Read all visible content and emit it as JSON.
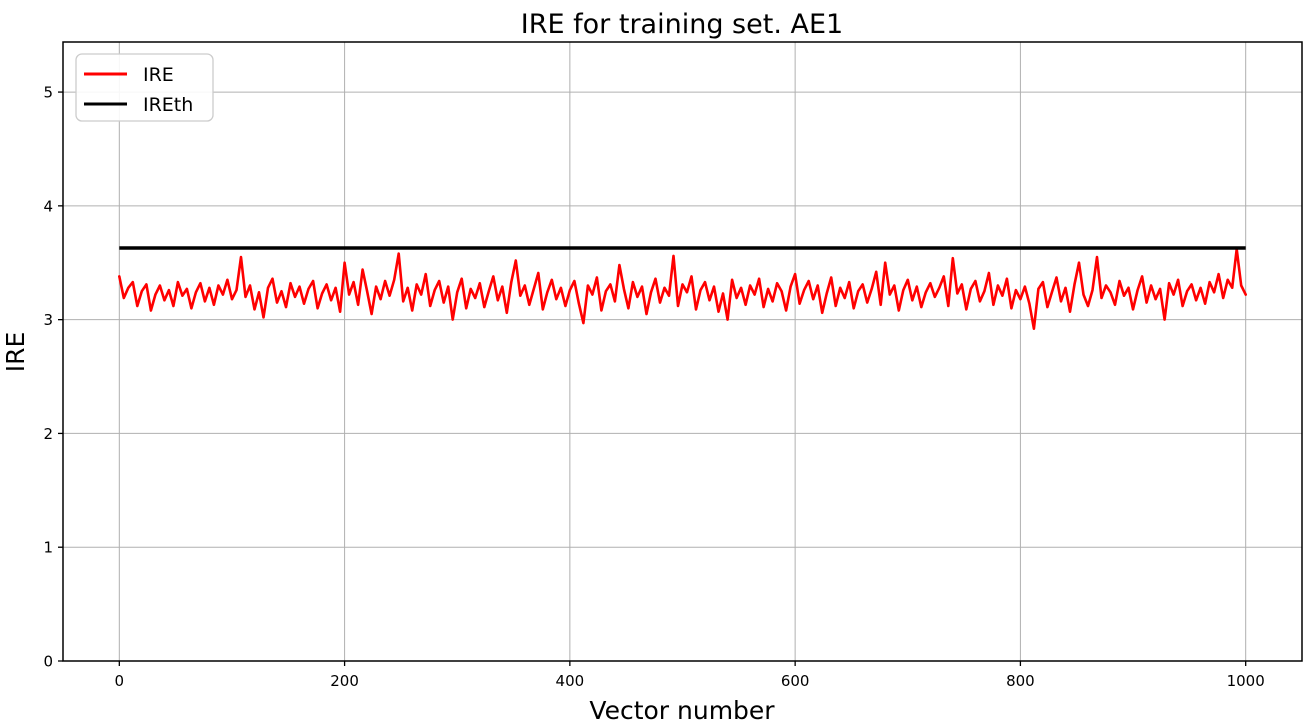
{
  "chart_data": {
    "type": "line",
    "title": "IRE for training set. AE1",
    "xlabel": "Vector number",
    "ylabel": "IRE",
    "xlim": [
      -50,
      1050
    ],
    "ylim": [
      0,
      5.44
    ],
    "x_ticks": [
      0,
      200,
      400,
      600,
      800,
      1000
    ],
    "y_ticks": [
      0,
      1,
      2,
      3,
      4,
      5
    ],
    "grid": true,
    "grid_color": "#b0b0b0",
    "axis_color": "#000000",
    "background_color": "#ffffff",
    "legend_position": "upper left",
    "x_start": 0,
    "x_step": 4,
    "series": [
      {
        "name": "IRE",
        "color": "#ff0000",
        "line_width": 2.6,
        "values": [
          3.38,
          3.19,
          3.28,
          3.33,
          3.12,
          3.25,
          3.31,
          3.08,
          3.22,
          3.3,
          3.17,
          3.26,
          3.12,
          3.33,
          3.21,
          3.27,
          3.1,
          3.24,
          3.32,
          3.16,
          3.28,
          3.13,
          3.3,
          3.22,
          3.35,
          3.18,
          3.26,
          3.55,
          3.2,
          3.3,
          3.09,
          3.24,
          3.02,
          3.28,
          3.36,
          3.15,
          3.25,
          3.11,
          3.32,
          3.2,
          3.29,
          3.14,
          3.27,
          3.34,
          3.1,
          3.23,
          3.31,
          3.17,
          3.28,
          3.07,
          3.5,
          3.22,
          3.33,
          3.13,
          3.44,
          3.25,
          3.05,
          3.29,
          3.18,
          3.34,
          3.21,
          3.35,
          3.58,
          3.16,
          3.28,
          3.08,
          3.31,
          3.22,
          3.4,
          3.12,
          3.26,
          3.34,
          3.15,
          3.29,
          3.0,
          3.24,
          3.36,
          3.1,
          3.27,
          3.19,
          3.32,
          3.11,
          3.25,
          3.38,
          3.17,
          3.29,
          3.06,
          3.33,
          3.52,
          3.21,
          3.3,
          3.13,
          3.27,
          3.41,
          3.09,
          3.24,
          3.35,
          3.18,
          3.28,
          3.12,
          3.26,
          3.34,
          3.14,
          2.97,
          3.3,
          3.22,
          3.37,
          3.08,
          3.25,
          3.31,
          3.16,
          3.48,
          3.27,
          3.1,
          3.33,
          3.2,
          3.29,
          3.05,
          3.24,
          3.36,
          3.15,
          3.28,
          3.21,
          3.56,
          3.12,
          3.31,
          3.24,
          3.38,
          3.09,
          3.26,
          3.33,
          3.17,
          3.29,
          3.07,
          3.23,
          3.0,
          3.35,
          3.19,
          3.28,
          3.13,
          3.3,
          3.22,
          3.36,
          3.11,
          3.27,
          3.16,
          3.32,
          3.25,
          3.08,
          3.29,
          3.4,
          3.14,
          3.26,
          3.34,
          3.18,
          3.3,
          3.06,
          3.23,
          3.37,
          3.12,
          3.28,
          3.19,
          3.33,
          3.1,
          3.25,
          3.31,
          3.15,
          3.27,
          3.42,
          3.13,
          3.5,
          3.22,
          3.3,
          3.08,
          3.26,
          3.35,
          3.17,
          3.29,
          3.11,
          3.24,
          3.32,
          3.2,
          3.28,
          3.38,
          3.12,
          3.54,
          3.23,
          3.31,
          3.09,
          3.27,
          3.34,
          3.16,
          3.25,
          3.41,
          3.13,
          3.3,
          3.21,
          3.36,
          3.1,
          3.26,
          3.18,
          3.29,
          3.14,
          2.92,
          3.27,
          3.33,
          3.11,
          3.24,
          3.37,
          3.16,
          3.28,
          3.07,
          3.31,
          3.5,
          3.22,
          3.12,
          3.26,
          3.55,
          3.19,
          3.3,
          3.24,
          3.13,
          3.34,
          3.21,
          3.28,
          3.09,
          3.26,
          3.38,
          3.15,
          3.3,
          3.18,
          3.27,
          3.0,
          3.32,
          3.22,
          3.35,
          3.12,
          3.25,
          3.31,
          3.17,
          3.28,
          3.14,
          3.33,
          3.24,
          3.4,
          3.19,
          3.35,
          3.28,
          3.62,
          3.3,
          3.22
        ]
      },
      {
        "name": "IREth",
        "color": "#000000",
        "line_width": 3.5,
        "constant_value": 3.63,
        "x_range": [
          0,
          1000
        ]
      }
    ]
  }
}
